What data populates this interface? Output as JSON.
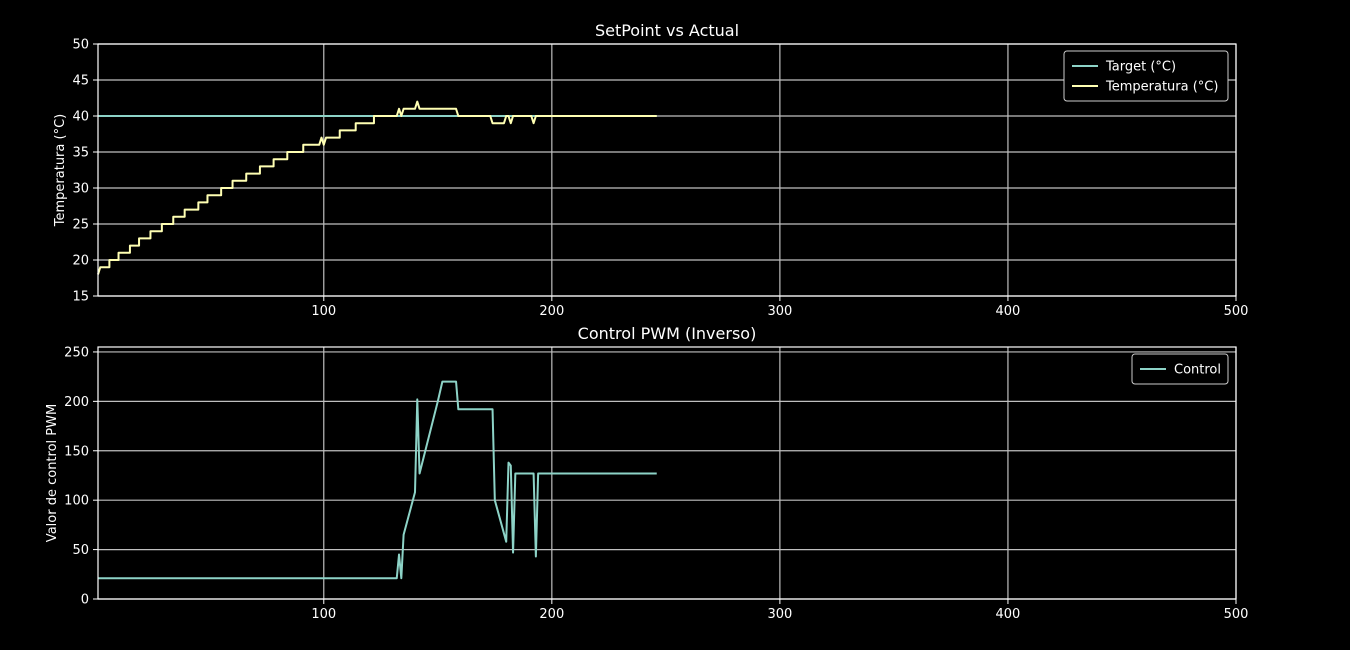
{
  "colors": {
    "background": "#000000",
    "axes": "#ffffff",
    "grid": "#bfbfbf",
    "target": "#8dd3c7",
    "temperatura": "#ffffb3",
    "control": "#8dd3c7"
  },
  "chart_data": [
    {
      "type": "line",
      "title": "SetPoint vs Actual",
      "xlabel": "",
      "ylabel": "Temperatura (°C)",
      "xlim": [
        1,
        500
      ],
      "ylim": [
        15,
        50
      ],
      "xticks": [
        100,
        200,
        300,
        400,
        500
      ],
      "yticks": [
        15,
        20,
        25,
        30,
        35,
        40,
        45,
        50
      ],
      "grid": true,
      "legend_position": "top-right",
      "series": [
        {
          "name": "Target (°C)",
          "color_key": "target",
          "points": [
            [
              1,
              40
            ],
            [
              246,
              40
            ]
          ]
        },
        {
          "name": "Temperatura (°C)",
          "color_key": "temperatura",
          "points": [
            [
              1,
              18
            ],
            [
              2,
              19
            ],
            [
              6,
              19
            ],
            [
              6,
              20
            ],
            [
              10,
              20
            ],
            [
              10,
              21
            ],
            [
              15,
              21
            ],
            [
              15,
              22
            ],
            [
              19,
              22
            ],
            [
              19,
              23
            ],
            [
              24,
              23
            ],
            [
              24,
              24
            ],
            [
              29,
              24
            ],
            [
              29,
              25
            ],
            [
              34,
              25
            ],
            [
              34,
              26
            ],
            [
              39,
              26
            ],
            [
              39,
              27
            ],
            [
              45,
              27
            ],
            [
              45,
              28
            ],
            [
              49,
              28
            ],
            [
              49,
              29
            ],
            [
              55,
              29
            ],
            [
              55,
              30
            ],
            [
              60,
              30
            ],
            [
              60,
              31
            ],
            [
              66,
              31
            ],
            [
              66,
              32
            ],
            [
              72,
              32
            ],
            [
              72,
              33
            ],
            [
              78,
              33
            ],
            [
              78,
              34
            ],
            [
              84,
              34
            ],
            [
              84,
              35
            ],
            [
              91,
              35
            ],
            [
              91,
              36
            ],
            [
              98,
              36
            ],
            [
              99,
              37
            ],
            [
              100,
              36
            ],
            [
              101,
              37
            ],
            [
              107,
              37
            ],
            [
              107,
              38
            ],
            [
              114,
              38
            ],
            [
              114,
              39
            ],
            [
              122,
              39
            ],
            [
              122,
              40
            ],
            [
              132,
              40
            ],
            [
              133,
              41
            ],
            [
              134,
              40
            ],
            [
              135,
              41
            ],
            [
              140,
              41
            ],
            [
              141,
              42
            ],
            [
              142,
              41
            ],
            [
              158,
              41
            ],
            [
              159,
              40
            ],
            [
              173,
              40
            ],
            [
              174,
              39
            ],
            [
              179,
              39
            ],
            [
              180,
              40
            ],
            [
              181,
              40
            ],
            [
              182,
              39
            ],
            [
              183,
              40
            ],
            [
              191,
              40
            ],
            [
              192,
              39
            ],
            [
              193,
              40
            ],
            [
              246,
              40
            ]
          ]
        }
      ]
    },
    {
      "type": "line",
      "title": "Control PWM (Inverso)",
      "xlabel": "",
      "ylabel": "Valor de control PWM",
      "xlim": [
        1,
        500
      ],
      "ylim": [
        0,
        255
      ],
      "xticks": [
        100,
        200,
        300,
        400,
        500
      ],
      "yticks": [
        0,
        50,
        100,
        150,
        200,
        250
      ],
      "grid": true,
      "legend_position": "top-right",
      "series": [
        {
          "name": "Control",
          "color_key": "control",
          "points": [
            [
              1,
              21
            ],
            [
              132,
              21
            ],
            [
              133,
              45
            ],
            [
              134,
              21
            ],
            [
              135,
              65
            ],
            [
              140,
              108
            ],
            [
              141,
              202
            ],
            [
              142,
              127
            ],
            [
              150,
              200
            ],
            [
              152,
              220
            ],
            [
              158,
              220
            ],
            [
              159,
              192
            ],
            [
              174,
              192
            ],
            [
              175,
              100
            ],
            [
              180,
              58
            ],
            [
              181,
              138
            ],
            [
              182,
              135
            ],
            [
              183,
              47
            ],
            [
              184,
              127
            ],
            [
              192,
              127
            ],
            [
              193,
              43
            ],
            [
              194,
              127
            ],
            [
              246,
              127
            ]
          ]
        }
      ]
    }
  ]
}
